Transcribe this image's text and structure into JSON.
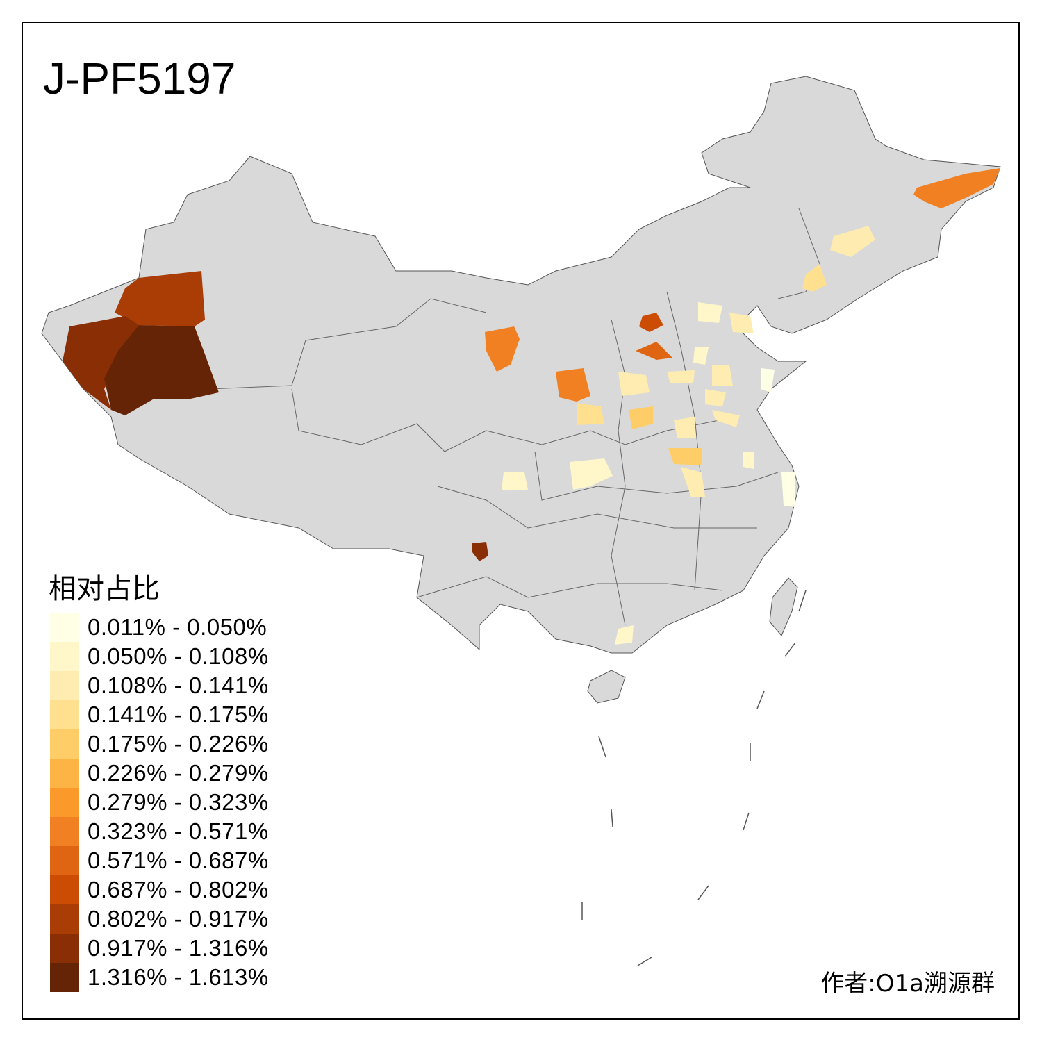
{
  "title": "J-PF5197",
  "legend": {
    "title": "相对占比",
    "items": [
      {
        "label": "0.011% - 0.050%",
        "color": "#FFFFE5"
      },
      {
        "label": "0.050% - 0.108%",
        "color": "#FFF7C9"
      },
      {
        "label": "0.108% - 0.141%",
        "color": "#FEECB0"
      },
      {
        "label": "0.141% - 0.175%",
        "color": "#FEE08F"
      },
      {
        "label": "0.175% - 0.226%",
        "color": "#FECD68"
      },
      {
        "label": "0.226% - 0.279%",
        "color": "#FEB444"
      },
      {
        "label": "0.279% - 0.323%",
        "color": "#FB9A2B"
      },
      {
        "label": "0.323% - 0.571%",
        "color": "#F08022"
      },
      {
        "label": "0.571% - 0.687%",
        "color": "#E06513"
      },
      {
        "label": "0.687% - 0.802%",
        "color": "#CC4C04"
      },
      {
        "label": "0.802% - 0.917%",
        "color": "#A93D05"
      },
      {
        "label": "0.917% - 1.316%",
        "color": "#8A2F05"
      },
      {
        "label": "1.316% - 1.613%",
        "color": "#662407"
      }
    ]
  },
  "map": {
    "base_color": "#D9D9D9",
    "border_color": "#555555"
  },
  "author": "作者:O1a溯源群"
}
